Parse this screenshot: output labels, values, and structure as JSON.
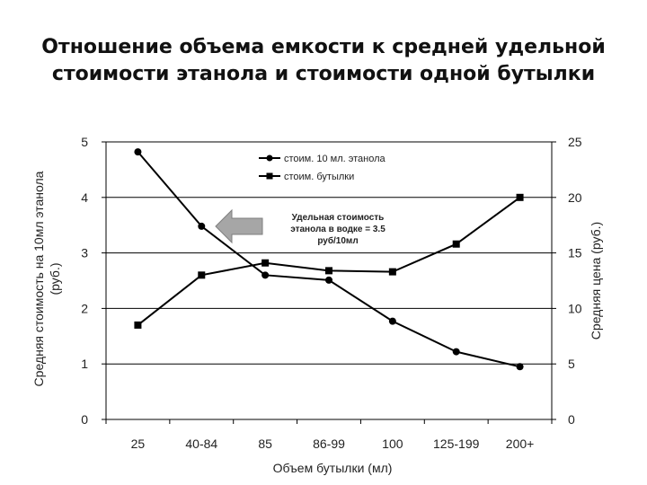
{
  "slide": {
    "title_line1": "Отношение объема емкости к средней удельной",
    "title_line2": "стоимости этанола и стоимости одной бутылки"
  },
  "chart_data": {
    "type": "line",
    "categories": [
      "25",
      "40-84",
      "85",
      "86-99",
      "100",
      "125-199",
      "200+"
    ],
    "xlabel": "Объем бутылки (мл)",
    "ylabel_left_line1": "Средняя стоимость на 10мл этанола",
    "ylabel_left_line2": "(руб.)",
    "ylabel_right": "Средняя цена (руб.)",
    "ylim_left": [
      0,
      5
    ],
    "yticks_left": [
      0,
      1,
      2,
      3,
      4,
      5
    ],
    "ylim_right": [
      0,
      25
    ],
    "yticks_right": [
      0,
      5,
      10,
      15,
      20,
      25
    ],
    "grid": true,
    "legend_position": "top-center",
    "series": [
      {
        "name": "стоим. 10 мл. этанола",
        "axis": "left",
        "marker": "circle",
        "values": [
          4.82,
          3.48,
          2.6,
          2.51,
          1.77,
          1.22,
          0.95
        ]
      },
      {
        "name": "стоим. бутылки",
        "axis": "right",
        "marker": "square",
        "values": [
          8.5,
          13.0,
          14.1,
          13.4,
          13.3,
          15.8,
          20.0
        ]
      }
    ],
    "annotation": {
      "line1": "Удельная стоимость",
      "line2": "этанола в водке = 3.5",
      "line3": "руб/10мл",
      "arrow_color": "#a6a6a6"
    },
    "colors": {
      "line": "#000000",
      "grid": "#000000"
    }
  }
}
